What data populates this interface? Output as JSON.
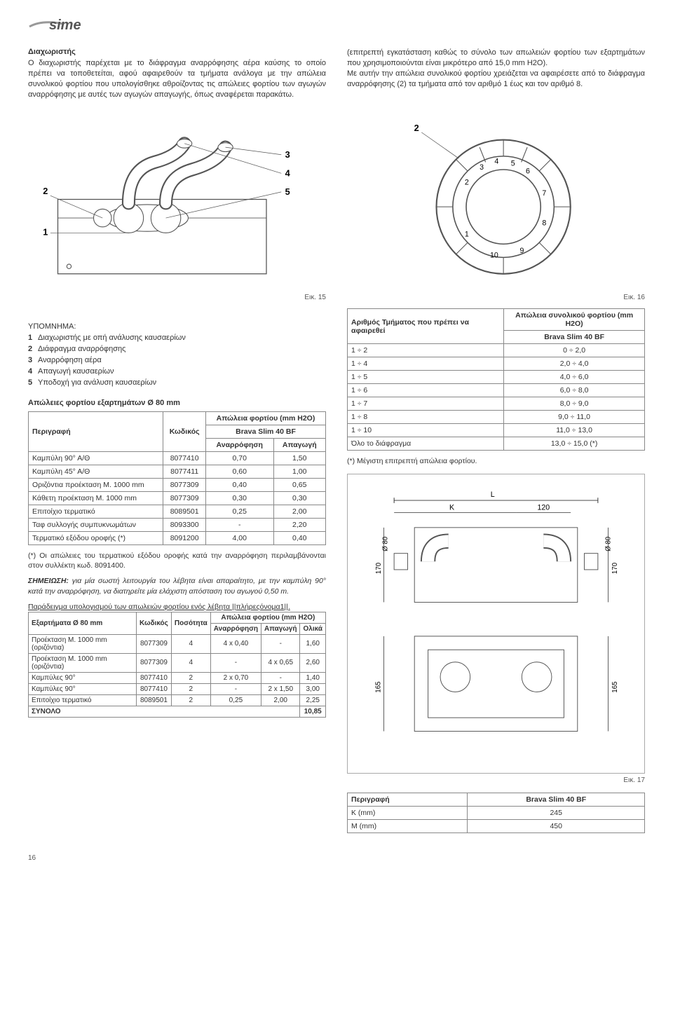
{
  "logo_text": "sime",
  "left_intro": {
    "title": "Διαχωριστής",
    "body": "Ο διαχωριστής παρέχεται με το διάφραγμα αναρρόφησης αέρα καύσης το οποίο πρέπει να τοποθετείται, αφού αφαιρεθούν τα τμήματα ανάλογα με την απώλεια συνολικού φορτίου που υπολογίσθηκε αθροίζοντας τις απώλειες φορτίου των αγωγών αναρρόφησης με αυτές των αγωγών απαγωγής, όπως αναφέρεται παρακάτω."
  },
  "right_intro": {
    "body1": "(επιτρεπτή εγκατάσταση καθώς το σύνολο των απωλειών φορτίου των εξαρτημάτων που χρησιμοποιούνται είναι μικρότερο από 15,0 mm H2O).",
    "body2": "Με αυτήν την απώλεια συνολικού φορτίου χρειάζεται να αφαιρέσετε από το διάφραγμα αναρρόφησης (2) τα τμήματα από τον αριθμό 1 έως και τον αριθμό 8."
  },
  "fig15": {
    "caption": "Εικ. 15"
  },
  "fig16": {
    "caption": "Εικ. 16"
  },
  "fig17": {
    "caption": "Εικ. 17"
  },
  "legend": {
    "title": "ΥΠΟΜΝΗΜΑ:",
    "items": [
      {
        "num": "1",
        "text": "Διαχωριστής με οπή ανάλυσης καυσαερίων"
      },
      {
        "num": "2",
        "text": "Διάφραγμα αναρρόφησης"
      },
      {
        "num": "3",
        "text": "Αναρρόφηση αέρα"
      },
      {
        "num": "4",
        "text": "Απαγωγή καυσαερίων"
      },
      {
        "num": "5",
        "text": "Υποδοχή για ανάλυση καυσαερίων"
      }
    ]
  },
  "table1": {
    "title": "Απώλειες φορτίου εξαρτημάτων Ø 80 mm",
    "headers": {
      "desc": "Περιγραφή",
      "code": "Κωδικός",
      "loss": "Απώλεια φορτίου (mm H2O)",
      "model": "Brava Slim 40 BF",
      "intake": "Αναρρόφηση",
      "exhaust": "Απαγωγή"
    },
    "rows": [
      {
        "desc": "Καμπύλη 90° Α/Θ",
        "code": "8077410",
        "intake": "0,70",
        "exhaust": "1,50"
      },
      {
        "desc": "Καμπύλη 45° Α/Θ",
        "code": "8077411",
        "intake": "0,60",
        "exhaust": "1,00"
      },
      {
        "desc": "Οριζόντια προέκταση Μ. 1000 mm",
        "code": "8077309",
        "intake": "0,40",
        "exhaust": "0,65"
      },
      {
        "desc": "Κάθετη προέκταση Μ. 1000 mm",
        "code": "8077309",
        "intake": "0,30",
        "exhaust": "0,30"
      },
      {
        "desc": "Επιτοίχιο τερματικό",
        "code": "8089501",
        "intake": "0,25",
        "exhaust": "2,00"
      },
      {
        "desc": "Ταφ συλλογής συμπυκνωμάτων",
        "code": "8093300",
        "intake": "-",
        "exhaust": "2,20"
      },
      {
        "desc": "Τερματικό εξόδου οροφής (*)",
        "code": "8091200",
        "intake": "4,00",
        "exhaust": "0,40"
      }
    ]
  },
  "note1": "(*) Οι απώλειες του τερματικού εξόδου οροφής κατά την αναρρόφηση περιλαμβάνονται στον συλλέκτη κωδ. 8091400.",
  "note2_label": "ΣΗΜΕΙΩΣΗ:",
  "note2": " για μία σωστή λειτουργία του λέβητα είναι απαραίτητο, με την καμπύλη 90° κατά την αναρρόφηση, να διατηρείτε μία ελάχιστη απόσταση του αγωγού 0,50 m.",
  "example_title": "Παράδειγμα υπολογισμού των απωλειών φορτίου ενός λέβητα ||πλήρεςόνομα1||.",
  "table2": {
    "headers": {
      "comp": "Εξαρτήματα Ø 80 mm",
      "code": "Κωδικός",
      "qty": "Ποσότητα",
      "loss": "Απώλεια φορτίου (mm H2O)",
      "intake": "Αναρρόφηση",
      "exhaust": "Απαγωγή",
      "total": "Ολικά"
    },
    "rows": [
      {
        "comp": "Προέκταση Μ. 1000 mm (οριζόντια)",
        "code": "8077309",
        "qty": "4",
        "intake": "4 x 0,40",
        "exhaust": "-",
        "total": "1,60"
      },
      {
        "comp": "Προέκταση Μ. 1000 mm (οριζόντια)",
        "code": "8077309",
        "qty": "4",
        "intake": "-",
        "exhaust": "4 x 0,65",
        "total": "2,60"
      },
      {
        "comp": "Καμπύλες 90°",
        "code": "8077410",
        "qty": "2",
        "intake": "2 x 0,70",
        "exhaust": "-",
        "total": "1,40"
      },
      {
        "comp": "Καμπύλες 90°",
        "code": "8077410",
        "qty": "2",
        "intake": "-",
        "exhaust": "2 x 1,50",
        "total": "3,00"
      },
      {
        "comp": "Επιτοίχιο τερματικό",
        "code": "8089501",
        "qty": "2",
        "intake": "0,25",
        "exhaust": "2,00",
        "total": "2,25"
      }
    ],
    "sum_label": "ΣΥΝΟΛΟ",
    "sum_value": "10,85"
  },
  "table3": {
    "headers": {
      "segment": "Αριθμός Τμήματος που πρέπει να αφαιρεθεί",
      "loss": "Απώλεια συνολικού φορτίου (mm H2O)",
      "model": "Brava Slim 40 BF"
    },
    "rows": [
      {
        "seg": "1 ÷ 2",
        "val": "0 ÷ 2,0"
      },
      {
        "seg": "1 ÷ 4",
        "val": "2,0 ÷ 4,0"
      },
      {
        "seg": "1 ÷ 5",
        "val": "4,0 ÷ 6,0"
      },
      {
        "seg": "1 ÷ 6",
        "val": "6,0 ÷ 8,0"
      },
      {
        "seg": "1 ÷ 7",
        "val": "8,0 ÷ 9,0"
      },
      {
        "seg": "1 ÷ 8",
        "val": "9,0 ÷ 11,0"
      },
      {
        "seg": "1 ÷ 10",
        "val": "11,0 ÷ 13,0"
      },
      {
        "seg": "Όλο το διάφραγμα",
        "val": "13,0 ÷ 15,0 (*)"
      }
    ]
  },
  "note3": "(*) Μέγιστη επιτρεπτή απώλεια φορτίου.",
  "table4": {
    "headers": {
      "desc": "Περιγραφή",
      "model": "Brava Slim 40 BF"
    },
    "rows": [
      {
        "desc": "K (mm)",
        "val": "245"
      },
      {
        "desc": "M (mm)",
        "val": "450"
      }
    ]
  },
  "dim_labels": {
    "L": "L",
    "K": "K",
    "v120": "120",
    "d80": "Ø 80",
    "v170": "170",
    "v165": "165"
  },
  "pagenum": "16",
  "colors": {
    "text": "#333333",
    "border": "#888888",
    "gray": "#aaaaaa"
  }
}
